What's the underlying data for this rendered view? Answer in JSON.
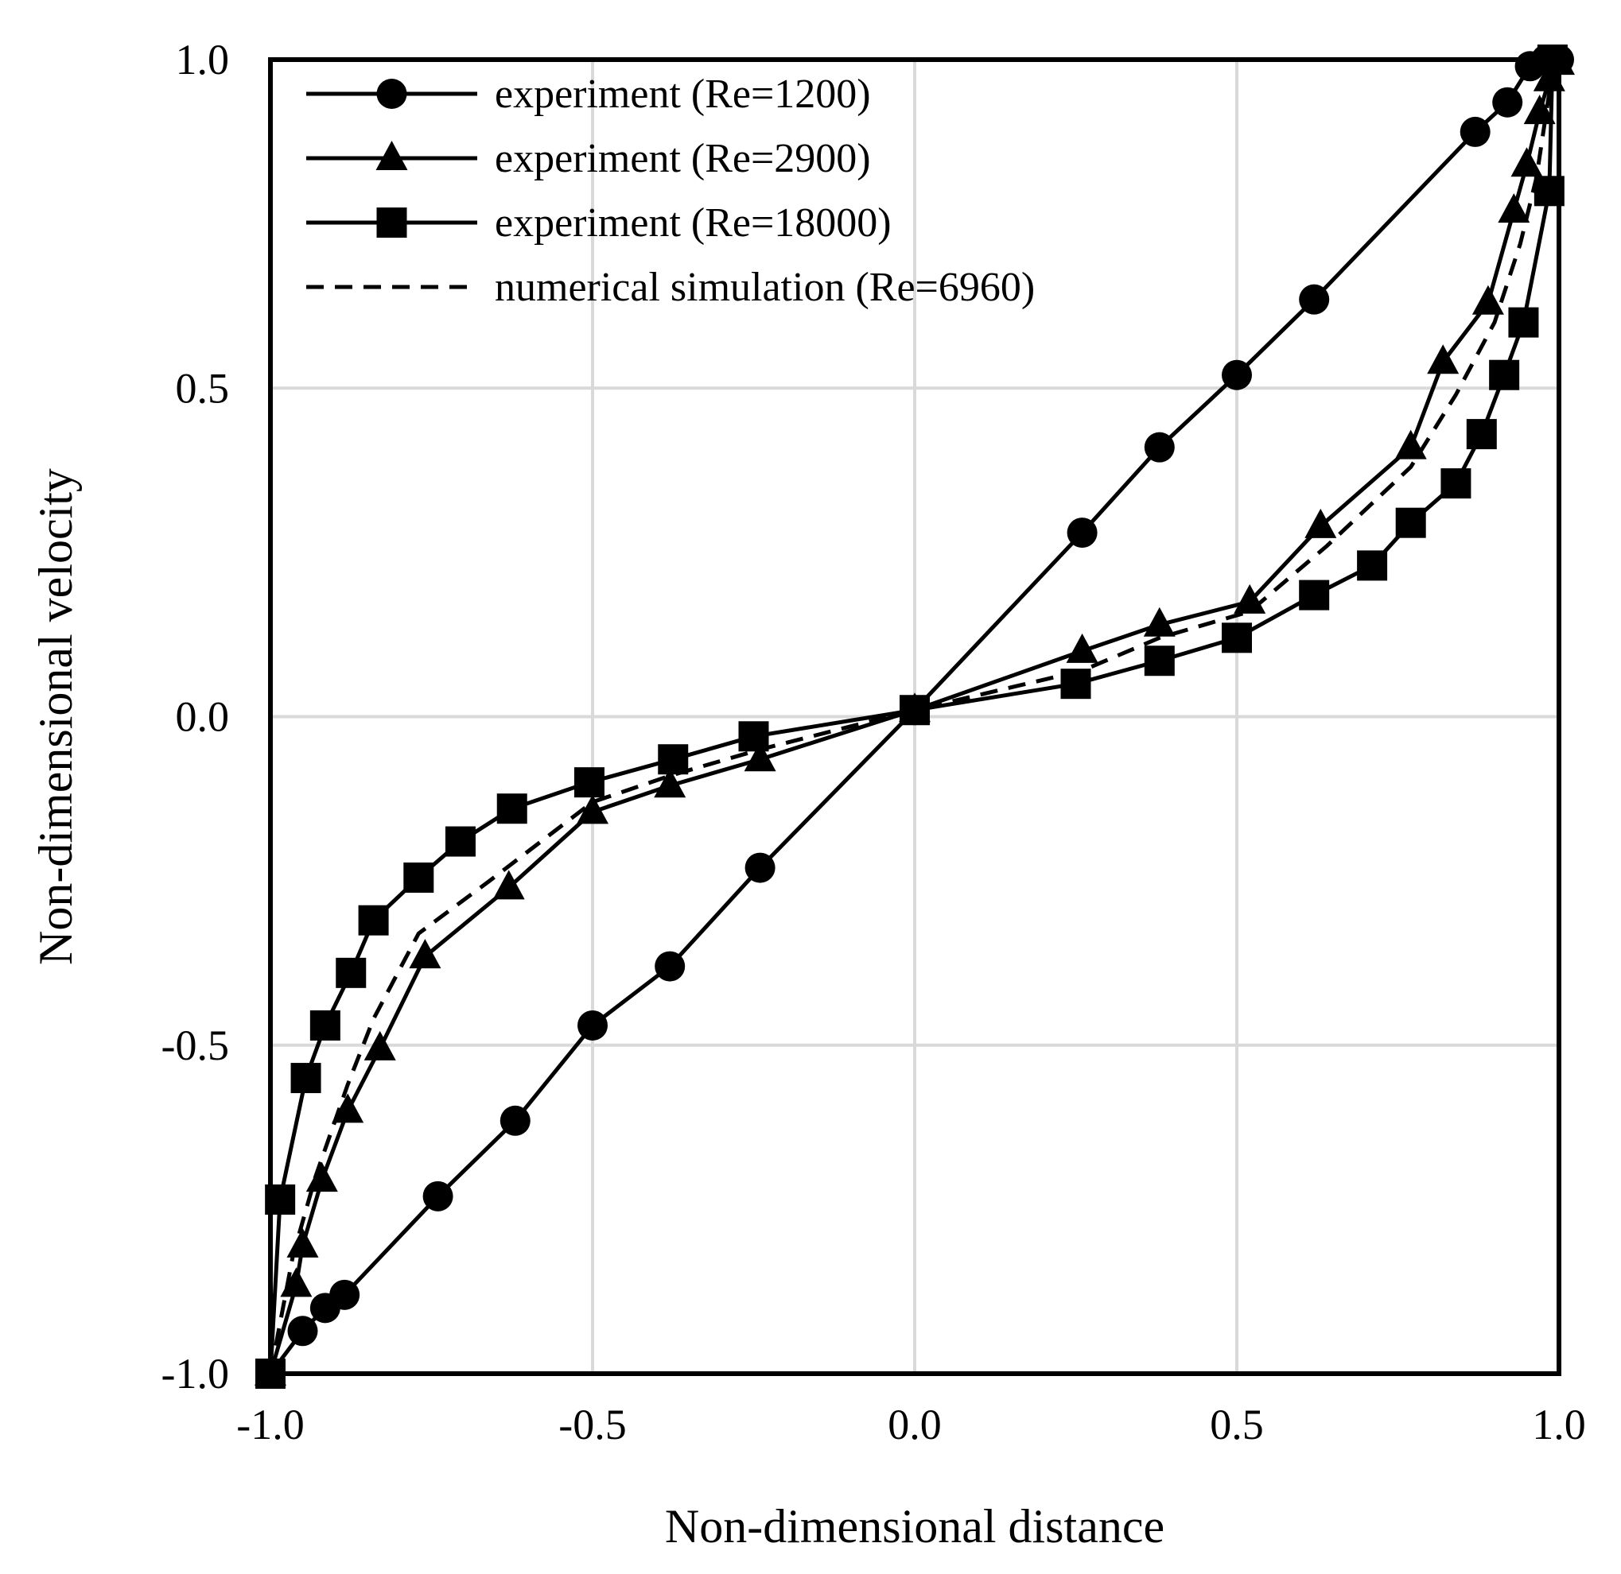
{
  "chart_data": {
    "type": "line",
    "title": "",
    "xlabel": "Non-dimensional distance",
    "ylabel": "Non-dimensional velocity",
    "xlim": [
      -1.0,
      1.0
    ],
    "ylim": [
      -1.0,
      1.0
    ],
    "xticks": [
      -1.0,
      -0.5,
      0.0,
      0.5,
      1.0
    ],
    "yticks": [
      -1.0,
      -0.5,
      0.0,
      0.5,
      1.0
    ],
    "xtick_labels": [
      "-1.0",
      "-0.5",
      "0.0",
      "0.5",
      "1.0"
    ],
    "ytick_labels": [
      "-1.0",
      "-0.5",
      "0.0",
      "0.5",
      "1.0"
    ],
    "grid": true,
    "legend_position": "top-left",
    "series": [
      {
        "name": "experiment (Re=1200)",
        "marker": "circle",
        "style": "solid",
        "color": "#000000",
        "points": [
          [
            -1.0,
            -1.0
          ],
          [
            -0.95,
            -0.935
          ],
          [
            -0.915,
            -0.9
          ],
          [
            -0.885,
            -0.88
          ],
          [
            -0.74,
            -0.73
          ],
          [
            -0.62,
            -0.615
          ],
          [
            -0.5,
            -0.47
          ],
          [
            -0.38,
            -0.38
          ],
          [
            -0.24,
            -0.23
          ],
          [
            0.0,
            0.01
          ],
          [
            0.26,
            0.28
          ],
          [
            0.38,
            0.41
          ],
          [
            0.5,
            0.52
          ],
          [
            0.62,
            0.635
          ],
          [
            0.87,
            0.89
          ],
          [
            0.92,
            0.935
          ],
          [
            0.955,
            0.99
          ],
          [
            0.98,
            1.0
          ],
          [
            1.0,
            1.0
          ]
        ]
      },
      {
        "name": "experiment (Re=2900)",
        "marker": "triangle",
        "style": "solid",
        "color": "#000000",
        "points": [
          [
            -1.0,
            -1.0
          ],
          [
            -0.96,
            -0.865
          ],
          [
            -0.95,
            -0.805
          ],
          [
            -0.92,
            -0.705
          ],
          [
            -0.88,
            -0.6
          ],
          [
            -0.83,
            -0.505
          ],
          [
            -0.76,
            -0.365
          ],
          [
            -0.63,
            -0.26
          ],
          [
            -0.5,
            -0.145
          ],
          [
            -0.38,
            -0.105
          ],
          [
            -0.24,
            -0.065
          ],
          [
            0.0,
            0.01
          ],
          [
            0.26,
            0.1
          ],
          [
            0.38,
            0.14
          ],
          [
            0.52,
            0.175
          ],
          [
            0.63,
            0.29
          ],
          [
            0.77,
            0.41
          ],
          [
            0.82,
            0.54
          ],
          [
            0.89,
            0.63
          ],
          [
            0.93,
            0.77
          ],
          [
            0.95,
            0.84
          ],
          [
            0.97,
            0.92
          ],
          [
            0.985,
            0.97
          ],
          [
            1.0,
            0.995
          ]
        ]
      },
      {
        "name": "experiment (Re=18000)",
        "marker": "square",
        "style": "solid",
        "color": "#000000",
        "points": [
          [
            -1.0,
            -1.0
          ],
          [
            -0.985,
            -0.735
          ],
          [
            -0.945,
            -0.55
          ],
          [
            -0.915,
            -0.47
          ],
          [
            -0.875,
            -0.39
          ],
          [
            -0.84,
            -0.31
          ],
          [
            -0.77,
            -0.245
          ],
          [
            -0.705,
            -0.19
          ],
          [
            -0.625,
            -0.14
          ],
          [
            -0.505,
            -0.1
          ],
          [
            -0.375,
            -0.065
          ],
          [
            -0.25,
            -0.03
          ],
          [
            0.0,
            0.01
          ],
          [
            0.25,
            0.05
          ],
          [
            0.38,
            0.085
          ],
          [
            0.5,
            0.12
          ],
          [
            0.62,
            0.185
          ],
          [
            0.71,
            0.23
          ],
          [
            0.77,
            0.295
          ],
          [
            0.84,
            0.355
          ],
          [
            0.88,
            0.43
          ],
          [
            0.915,
            0.52
          ],
          [
            0.945,
            0.6
          ],
          [
            0.985,
            0.8
          ],
          [
            0.99,
            1.0
          ]
        ]
      },
      {
        "name": "numerical simulation (Re=6960)",
        "marker": "none",
        "style": "dashed",
        "color": "#000000",
        "points": [
          [
            -1.0,
            -1.0
          ],
          [
            -0.965,
            -0.82
          ],
          [
            -0.93,
            -0.7
          ],
          [
            -0.88,
            -0.56
          ],
          [
            -0.84,
            -0.46
          ],
          [
            -0.77,
            -0.33
          ],
          [
            -0.66,
            -0.25
          ],
          [
            -0.5,
            -0.13
          ],
          [
            -0.38,
            -0.09
          ],
          [
            -0.24,
            -0.05
          ],
          [
            0.0,
            0.01
          ],
          [
            0.26,
            0.07
          ],
          [
            0.38,
            0.12
          ],
          [
            0.52,
            0.16
          ],
          [
            0.64,
            0.26
          ],
          [
            0.77,
            0.38
          ],
          [
            0.84,
            0.49
          ],
          [
            0.9,
            0.6
          ],
          [
            0.94,
            0.72
          ],
          [
            0.965,
            0.82
          ],
          [
            0.985,
            0.95
          ],
          [
            1.0,
            1.0
          ]
        ]
      }
    ]
  }
}
